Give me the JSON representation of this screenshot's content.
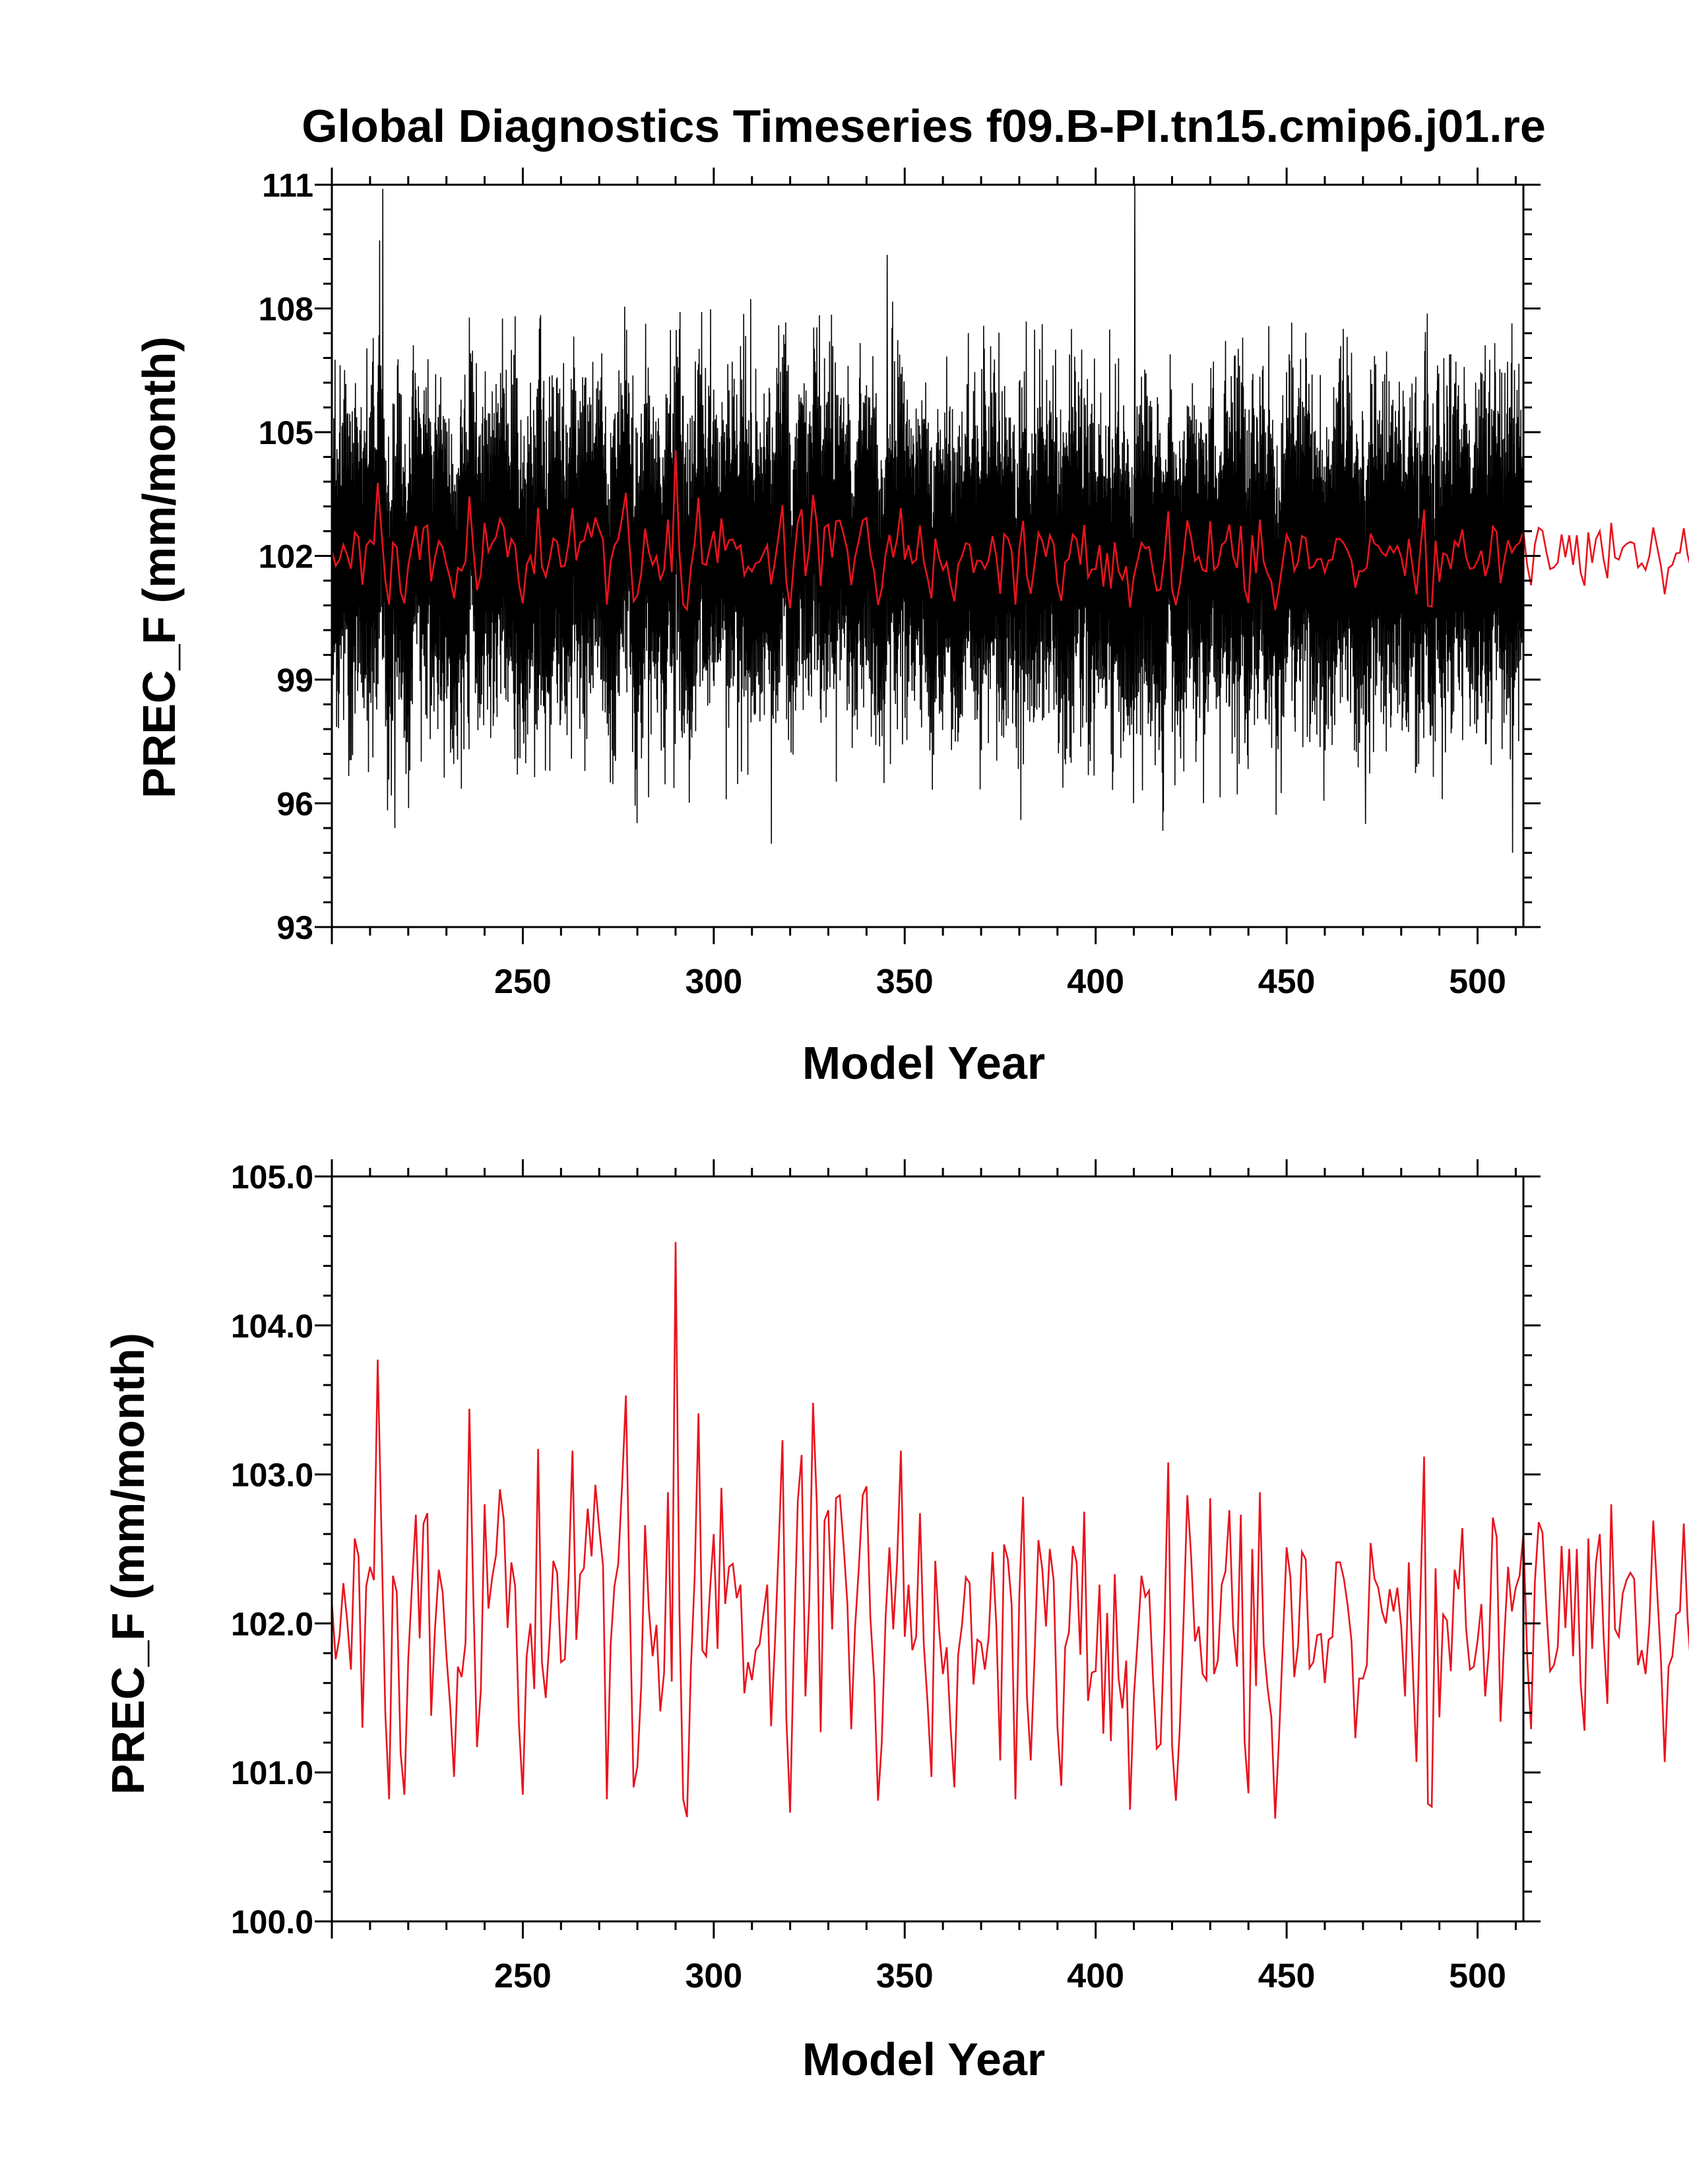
{
  "title": "Global Diagnostics Timeseries f09.B-PI.tn15.cmip6.j01.re",
  "colors": {
    "monthly": "#000000",
    "annual": "#e8141e",
    "axis": "#000000"
  },
  "annual_series_values": [
    102.14,
    101.76,
    101.91,
    102.27,
    102.02,
    101.69,
    102.57,
    102.45,
    101.3,
    102.25,
    102.38,
    102.29,
    103.77,
    102.58,
    101.4,
    100.82,
    102.32,
    102.21,
    101.13,
    100.85,
    101.76,
    102.27,
    102.73,
    101.9,
    102.67,
    102.74,
    101.38,
    101.96,
    102.36,
    102.21,
    101.78,
    101.44,
    100.97,
    101.71,
    101.64,
    101.87,
    103.44,
    102.22,
    101.17,
    101.55,
    102.8,
    102.1,
    102.31,
    102.46,
    102.9,
    102.7,
    101.97,
    102.41,
    102.25,
    101.32,
    100.85,
    101.78,
    102.0,
    101.56,
    103.17,
    101.74,
    101.5,
    101.9,
    102.42,
    102.34,
    101.74,
    101.76,
    102.31,
    103.16,
    101.89,
    102.33,
    102.37,
    102.77,
    102.45,
    102.93,
    102.64,
    102.39,
    100.82,
    101.86,
    102.25,
    102.4,
    102.93,
    103.53,
    102.17,
    100.9,
    101.04,
    101.58,
    102.66,
    102.1,
    101.78,
    101.99,
    101.41,
    101.67,
    102.88,
    101.61,
    104.56,
    102.09,
    100.82,
    100.7,
    101.69,
    102.31,
    103.41,
    101.82,
    101.78,
    102.22,
    102.6,
    101.83,
    102.91,
    102.13,
    102.38,
    102.4,
    102.17,
    102.26,
    101.53,
    101.74,
    101.62,
    101.82,
    101.86,
    102.06,
    102.26,
    101.31,
    101.86,
    102.52,
    103.23,
    101.37,
    100.73,
    101.88,
    102.82,
    103.13,
    101.51,
    102.15,
    103.48,
    102.79,
    101.27,
    102.69,
    102.76,
    101.96,
    102.84,
    102.86,
    102.52,
    102.13,
    101.29,
    101.97,
    102.38,
    102.86,
    102.92,
    102.04,
    101.62,
    100.81,
    101.2,
    102.04,
    102.51,
    101.96,
    102.41,
    103.16,
    101.91,
    102.26,
    101.82,
    101.91,
    102.74,
    101.86,
    101.46,
    100.97,
    102.42,
    101.96,
    101.66,
    101.84,
    101.31,
    100.9,
    101.79,
    101.99,
    102.31,
    102.27,
    101.59,
    101.89,
    101.87,
    101.69,
    101.91,
    102.48,
    101.98,
    101.08,
    102.53,
    102.43,
    102.13,
    100.82,
    102.18,
    102.85,
    101.51,
    101.08,
    101.78,
    102.56,
    102.37,
    101.98,
    102.5,
    102.29,
    101.3,
    100.91,
    101.84,
    101.94,
    102.52,
    102.41,
    101.79,
    102.75,
    101.48,
    101.67,
    101.68,
    102.26,
    101.26,
    102.07,
    101.21,
    102.33,
    101.63,
    101.43,
    101.75,
    100.75,
    101.51,
    101.9,
    102.32,
    102.18,
    102.22,
    101.64,
    101.16,
    101.19,
    101.97,
    103.08,
    101.18,
    100.81,
    101.28,
    102.0,
    102.86,
    102.45,
    101.88,
    101.98,
    101.66,
    101.62,
    102.84,
    101.66,
    101.75,
    102.26,
    102.35,
    102.76,
    101.98,
    101.71,
    102.73,
    101.21,
    100.86,
    102.5,
    101.58,
    102.88,
    101.85,
    101.57,
    101.37,
    100.69,
    101.22,
    101.86,
    102.51,
    102.31,
    101.64,
    101.85,
    102.48,
    102.43,
    101.7,
    101.74,
    101.92,
    101.93,
    101.6,
    101.89,
    101.91,
    102.41,
    102.41,
    102.3,
    102.12,
    101.88,
    101.23,
    101.63,
    101.63,
    101.72,
    102.54,
    102.3,
    102.24,
    102.08,
    102.0,
    102.23,
    102.08,
    102.24,
    101.98,
    101.51,
    102.41,
    101.73,
    101.07,
    102.14,
    103.12,
    100.79,
    100.77,
    102.37,
    101.37,
    102.06,
    102.02,
    101.68,
    102.36,
    102.23,
    102.64,
    101.96,
    101.69,
    101.71,
    101.88,
    102.13,
    101.51,
    101.83,
    102.71,
    102.58,
    101.34,
    101.91,
    102.38,
    102.08,
    102.24,
    102.32,
    102.6,
    101.77,
    101.29,
    102.28,
    102.68,
    102.61,
    102.11,
    101.68,
    101.72,
    101.84,
    102.52,
    101.97,
    102.5,
    101.78,
    102.5,
    101.59,
    101.28,
    102.57,
    101.83,
    102.41,
    102.6,
    101.91,
    101.46,
    102.8,
    101.96,
    101.91,
    102.2,
    102.29,
    102.34,
    102.3,
    101.72,
    101.82,
    101.66,
    102.0,
    102.69,
    102.23,
    101.76,
    101.07,
    101.71,
    101.78,
    102.06,
    102.08,
    102.67,
    102.02,
    101.66,
    102.09,
    102.47,
    101.88,
    101.87,
    102.61,
    102.46,
    101.49,
    101.42,
    102.04,
    102.66,
    101.99,
    102.67,
    102.11,
    101.35,
    101.5,
    102.15,
    102.22,
    101.88,
    101.87,
    101.93,
    102.48,
    101.98,
    101.8,
    101.12,
    102.54,
    102.55,
    101.99,
    101.78,
    102.12,
    102.83,
    102.3,
    101.69,
    101.57,
    102.03,
    101.53,
    101.98,
    102.22,
    101.82,
    102.17,
    102.71,
    102.64,
    101.16,
    102.06,
    102.58,
    101.88,
    101.55,
    102.1,
    102.2,
    102.14,
    101.66,
    101.97,
    101.42,
    101.48,
    101.89,
    102.44,
    102.59,
    102.14,
    102.02,
    101.92,
    101.51,
    101.98,
    101.84,
    101.42,
    102.04,
    101.66,
    102.18,
    102.12,
    101.71,
    101.9,
    101.6,
    101.72,
    102.82,
    101.95,
    102.53,
    101.66,
    101.93,
    101.9,
    102.23,
    101.73,
    101.56,
    101.83,
    102.2,
    101.89,
    101.62,
    102.12,
    102.57,
    101.61,
    101.98,
    102.02,
    102.24,
    102.02,
    102.11,
    102.13,
    102.03,
    101.45,
    101.51,
    102.42,
    102.0,
    101.75,
    102.08,
    102.26,
    101.96,
    101.64,
    101.27,
    101.43,
    102.54,
    102.25,
    102.14,
    102.4,
    101.97,
    101.76,
    101.96,
    102.15,
    102.58,
    102.49,
    101.84,
    101.66,
    102.34,
    101.61,
    102.34,
    101.86,
    101.86,
    102.66,
    102.4,
    101.83,
    101.89,
    102.09,
    101.96,
    101.84,
    102.63,
    102.27,
    102.32,
    101.84,
    101.86,
    102.38,
    102.01,
    102.09,
    101.82,
    102.29,
    101.43,
    102.0,
    102.36,
    102.51,
    102.1,
    102.1,
    101.7,
    101.94,
    102.28,
    101.99,
    102.19,
    102.43,
    101.91,
    102.6,
    101.62,
    101.59,
    102.26,
    102.16,
    101.65,
    101.99,
    101.89,
    101.98,
    101.91,
    102.13,
    102.04,
    102.61,
    101.86,
    102.39,
    101.88,
    101.7,
    101.74,
    102.38,
    102.18
  ],
  "chart_data": [
    {
      "type": "line",
      "title": "Global Diagnostics Timeseries f09.B-PI.tn15.cmip6.j01.re",
      "xlabel": "Model Year",
      "ylabel": "PREC_F (mm/month)",
      "xlim": [
        200,
        512
      ],
      "ylim": [
        93,
        111
      ],
      "x_ticks": [
        250,
        300,
        350,
        400,
        450,
        500
      ],
      "x_tick_labels": [
        "250",
        "300",
        "350",
        "400",
        "450",
        "500"
      ],
      "y_ticks": [
        93,
        96,
        99,
        102,
        105,
        108,
        111
      ],
      "y_tick_labels": [
        "93",
        "96",
        "99",
        "102",
        "105",
        "108",
        "111"
      ],
      "grid": false,
      "legend": "none",
      "series": [
        {
          "style": "monthly",
          "color": "#000000",
          "x_start": 200,
          "step": 0.0833,
          "mean": 102.0,
          "range": [
            94.8,
            111.0
          ],
          "values_shown": "monthly values from year 200 to 512, oscillating roughly between 97 and 107 with extremes 110.9 (≈ year 213) and 111.0 (≈ year 410), minima ≈ 95.4 (≈ year 216) and 94.8 (≈ year 509)"
        },
        {
          "style": "annual",
          "color": "#e8141e",
          "x_start": 200,
          "step": 1,
          "values_ref": "annual_series_values"
        }
      ]
    },
    {
      "type": "line",
      "title": "",
      "xlabel": "Model Year",
      "ylabel": "PREC_F (mm/month)",
      "xlim": [
        200,
        512
      ],
      "ylim": [
        100.0,
        105.0
      ],
      "x_ticks": [
        250,
        300,
        350,
        400,
        450,
        500
      ],
      "x_tick_labels": [
        "250",
        "300",
        "350",
        "400",
        "450",
        "500"
      ],
      "y_ticks": [
        100.0,
        101.0,
        102.0,
        103.0,
        104.0,
        105.0
      ],
      "y_tick_labels": [
        "100.0",
        "101.0",
        "102.0",
        "103.0",
        "104.0",
        "105.0"
      ],
      "grid": false,
      "legend": "none",
      "series": [
        {
          "style": "annual",
          "color": "#e8141e",
          "x_start": 200,
          "step": 1,
          "values_ref": "annual_series_values"
        }
      ]
    }
  ]
}
